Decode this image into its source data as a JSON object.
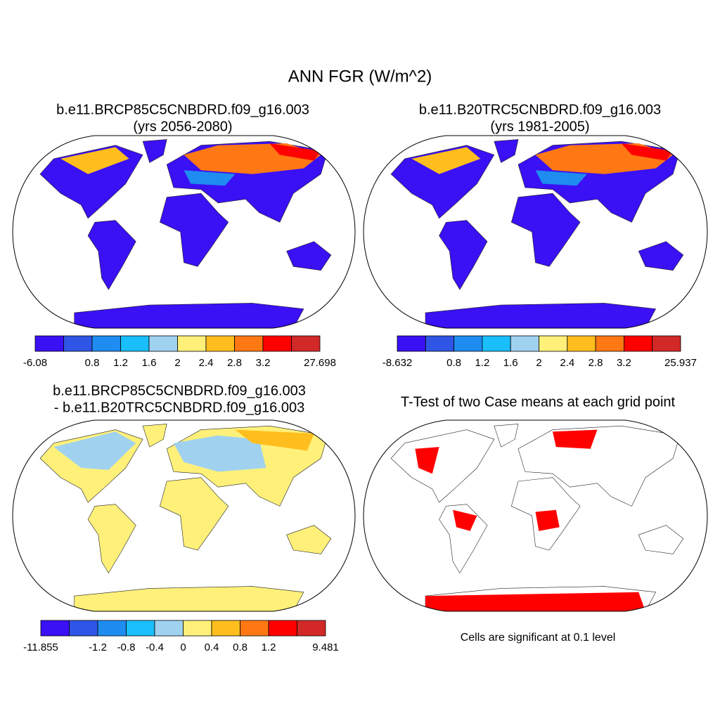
{
  "title": "ANN FGR (W/m^2)",
  "panels": [
    {
      "title_lines": [
        "b.e11.BRCP85C5CNBDRD.f09_g16.003",
        "(yrs 2056-2080)"
      ],
      "colorbar": {
        "levels": [
          -6.08,
          null,
          0.8,
          1.2,
          1.6,
          2,
          2.4,
          2.8,
          3.2,
          null,
          27.698
        ],
        "colors": [
          "#3a10f5",
          "#2f55e6",
          "#1e8cf0",
          "#19befa",
          "#a0d2f0",
          "#fff07a",
          "#ffbe1e",
          "#ff7814",
          "#ff0000",
          "#d22828"
        ]
      }
    },
    {
      "title_lines": [
        "b.e11.B20TRC5CNBDRD.f09_g16.003",
        "(yrs 1981-2005)"
      ],
      "colorbar": {
        "levels": [
          -8.632,
          null,
          0.8,
          1.2,
          1.6,
          2,
          2.4,
          2.8,
          3.2,
          null,
          25.937
        ],
        "colors": [
          "#3a10f5",
          "#2f55e6",
          "#1e8cf0",
          "#19befa",
          "#a0d2f0",
          "#fff07a",
          "#ffbe1e",
          "#ff7814",
          "#ff0000",
          "#d22828"
        ]
      }
    },
    {
      "title_lines": [
        "b.e11.BRCP85C5CNBDRD.f09_g16.003",
        "- b.e11.B20TRC5CNBDRD.f09_g16.003"
      ],
      "colorbar": {
        "levels": [
          -11.855,
          null,
          -1.2,
          -0.8,
          -0.4,
          0,
          0.4,
          0.8,
          1.2,
          null,
          9.481
        ],
        "colors": [
          "#3a10f5",
          "#2f55e6",
          "#1e8cf0",
          "#19befa",
          "#a0d2f0",
          "#fff07a",
          "#ffbe1e",
          "#ff7814",
          "#ff0000",
          "#d22828"
        ]
      }
    },
    {
      "title_lines": [
        "T-Test of two Case means at each grid point"
      ],
      "note": "Cells are significant at 0.1 level"
    }
  ]
}
